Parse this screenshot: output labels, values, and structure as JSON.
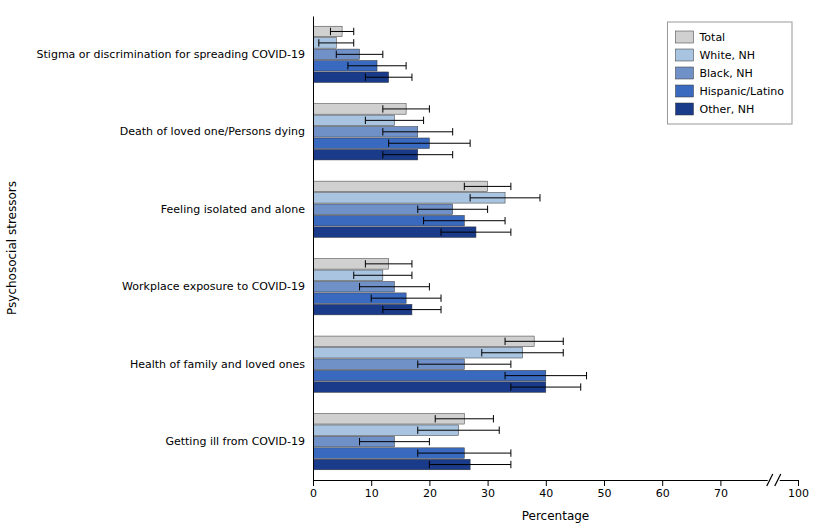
{
  "chart_data": {
    "type": "bar",
    "orientation": "horizontal",
    "xlabel": "Percentage",
    "ylabel": "Psychosocial stressors",
    "categories": [
      "Getting ill from COVID-19",
      "Health of family and loved ones",
      "Workplace exposure to COVID-19",
      "Feeling isolated and alone",
      "Death of loved one/Persons dying",
      "Stigma or discrimination for spreading COVID-19"
    ],
    "series": [
      {
        "name": "Total",
        "color": "#d0d0d0",
        "values": [
          26,
          38,
          13,
          30,
          16,
          5
        ],
        "errors": [
          5,
          5,
          4,
          4,
          4,
          2
        ]
      },
      {
        "name": "White, NH",
        "color": "#a8c4e0",
        "values": [
          25,
          36,
          12,
          33,
          14,
          4
        ],
        "errors": [
          7,
          7,
          5,
          6,
          5,
          3
        ]
      },
      {
        "name": "Black, NH",
        "color": "#7090c8",
        "values": [
          14,
          26,
          14,
          24,
          18,
          8
        ],
        "errors": [
          6,
          8,
          6,
          6,
          6,
          4
        ]
      },
      {
        "name": "Hispanic/Latino",
        "color": "#3a6abf",
        "values": [
          26,
          40,
          16,
          26,
          20,
          11
        ],
        "errors": [
          8,
          7,
          6,
          7,
          7,
          5
        ]
      },
      {
        "name": "Other, NH",
        "color": "#1a3a8a",
        "values": [
          27,
          40,
          17,
          28,
          18,
          13
        ],
        "errors": [
          7,
          6,
          5,
          6,
          6,
          4
        ]
      }
    ],
    "xlim": [
      0,
      100
    ],
    "xticks": [
      0,
      10,
      20,
      30,
      40,
      50,
      60,
      70,
      100
    ],
    "grid": false,
    "legend": "upper right"
  }
}
